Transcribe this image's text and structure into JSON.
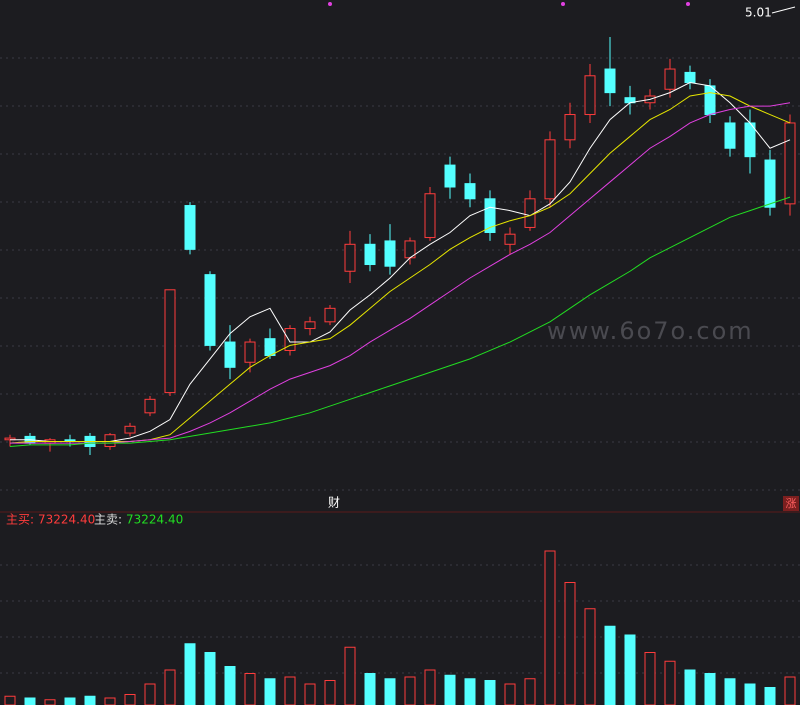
{
  "chart_data": [
    {
      "type": "candlestick",
      "ylim": [
        2.5,
        5.2
      ],
      "high_label": "5.01",
      "watermark": "www.6o7o.com",
      "marker_left": "财",
      "marker_right": "涨",
      "up_color": "#ff3c3c",
      "down_color": "#54ffff",
      "candles": [
        {
          "open": 2.62,
          "high": 2.65,
          "low": 2.58,
          "close": 2.63
        },
        {
          "open": 2.64,
          "high": 2.66,
          "low": 2.59,
          "close": 2.6
        },
        {
          "open": 2.6,
          "high": 2.63,
          "low": 2.55,
          "close": 2.62
        },
        {
          "open": 2.62,
          "high": 2.65,
          "low": 2.58,
          "close": 2.61
        },
        {
          "open": 2.64,
          "high": 2.66,
          "low": 2.53,
          "close": 2.58
        },
        {
          "open": 2.58,
          "high": 2.66,
          "low": 2.56,
          "close": 2.65
        },
        {
          "open": 2.66,
          "high": 2.72,
          "low": 2.64,
          "close": 2.7
        },
        {
          "open": 2.78,
          "high": 2.88,
          "low": 2.76,
          "close": 2.86
        },
        {
          "open": 2.9,
          "high": 3.51,
          "low": 2.88,
          "close": 3.51
        },
        {
          "open": 4.01,
          "high": 4.03,
          "low": 3.72,
          "close": 3.75
        },
        {
          "open": 3.6,
          "high": 3.62,
          "low": 3.15,
          "close": 3.18
        },
        {
          "open": 3.2,
          "high": 3.3,
          "low": 2.98,
          "close": 3.05
        },
        {
          "open": 3.08,
          "high": 3.22,
          "low": 3.02,
          "close": 3.2
        },
        {
          "open": 3.22,
          "high": 3.28,
          "low": 3.1,
          "close": 3.12
        },
        {
          "open": 3.15,
          "high": 3.3,
          "low": 3.12,
          "close": 3.28
        },
        {
          "open": 3.28,
          "high": 3.35,
          "low": 3.24,
          "close": 3.32
        },
        {
          "open": 3.32,
          "high": 3.42,
          "low": 3.3,
          "close": 3.4
        },
        {
          "open": 3.62,
          "high": 3.86,
          "low": 3.55,
          "close": 3.78
        },
        {
          "open": 3.78,
          "high": 3.84,
          "low": 3.62,
          "close": 3.66
        },
        {
          "open": 3.8,
          "high": 3.9,
          "low": 3.6,
          "close": 3.65
        },
        {
          "open": 3.7,
          "high": 3.82,
          "low": 3.66,
          "close": 3.8
        },
        {
          "open": 3.82,
          "high": 4.12,
          "low": 3.8,
          "close": 4.08
        },
        {
          "open": 4.25,
          "high": 4.3,
          "low": 4.05,
          "close": 4.12
        },
        {
          "open": 4.14,
          "high": 4.2,
          "low": 4.0,
          "close": 4.05
        },
        {
          "open": 4.05,
          "high": 4.1,
          "low": 3.8,
          "close": 3.85
        },
        {
          "open": 3.78,
          "high": 3.88,
          "low": 3.72,
          "close": 3.84
        },
        {
          "open": 3.88,
          "high": 4.1,
          "low": 3.86,
          "close": 4.05
        },
        {
          "open": 4.05,
          "high": 4.45,
          "low": 4.0,
          "close": 4.4
        },
        {
          "open": 4.4,
          "high": 4.62,
          "low": 4.35,
          "close": 4.55
        },
        {
          "open": 4.55,
          "high": 4.85,
          "low": 4.5,
          "close": 4.78
        },
        {
          "open": 4.82,
          "high": 5.01,
          "low": 4.6,
          "close": 4.68
        },
        {
          "open": 4.65,
          "high": 4.72,
          "low": 4.55,
          "close": 4.62
        },
        {
          "open": 4.62,
          "high": 4.7,
          "low": 4.58,
          "close": 4.66
        },
        {
          "open": 4.7,
          "high": 4.88,
          "low": 4.65,
          "close": 4.82
        },
        {
          "open": 4.8,
          "high": 4.84,
          "low": 4.7,
          "close": 4.74
        },
        {
          "open": 4.72,
          "high": 4.76,
          "low": 4.5,
          "close": 4.55
        },
        {
          "open": 4.5,
          "high": 4.54,
          "low": 4.3,
          "close": 4.35
        },
        {
          "open": 4.5,
          "high": 4.58,
          "low": 4.2,
          "close": 4.3
        },
        {
          "open": 4.28,
          "high": 4.34,
          "low": 3.95,
          "close": 4.0
        },
        {
          "open": 4.02,
          "high": 4.55,
          "low": 3.95,
          "close": 4.5
        }
      ],
      "lines": [
        {
          "color": "#ffffff",
          "values": [
            2.62,
            2.62,
            2.61,
            2.61,
            2.61,
            2.61,
            2.63,
            2.67,
            2.74,
            2.95,
            3.1,
            3.25,
            3.35,
            3.4,
            3.2,
            3.2,
            3.26,
            3.39,
            3.48,
            3.58,
            3.7,
            3.78,
            3.85,
            3.95,
            4.0,
            3.98,
            3.95,
            4.02,
            4.15,
            4.35,
            4.52,
            4.62,
            4.64,
            4.68,
            4.74,
            4.72,
            4.62,
            4.5,
            4.35,
            4.4
          ]
        },
        {
          "color": "#e6e600",
          "values": [
            2.6,
            2.61,
            2.61,
            2.61,
            2.61,
            2.61,
            2.61,
            2.62,
            2.65,
            2.75,
            2.85,
            2.95,
            3.05,
            3.12,
            3.18,
            3.2,
            3.22,
            3.3,
            3.4,
            3.5,
            3.58,
            3.66,
            3.75,
            3.82,
            3.88,
            3.92,
            3.95,
            4.0,
            4.08,
            4.2,
            4.32,
            4.42,
            4.52,
            4.58,
            4.66,
            4.68,
            4.66,
            4.6,
            4.55,
            4.5
          ]
        },
        {
          "color": "#e040e0",
          "values": [
            2.6,
            2.6,
            2.6,
            2.6,
            2.6,
            2.6,
            2.61,
            2.62,
            2.63,
            2.67,
            2.72,
            2.78,
            2.85,
            2.92,
            2.98,
            3.02,
            3.06,
            3.12,
            3.2,
            3.27,
            3.34,
            3.42,
            3.5,
            3.58,
            3.65,
            3.72,
            3.78,
            3.85,
            3.95,
            4.05,
            4.15,
            4.25,
            4.35,
            4.42,
            4.5,
            4.55,
            4.58,
            4.6,
            4.6,
            4.62
          ]
        },
        {
          "color": "#22dd22",
          "values": [
            2.58,
            2.59,
            2.59,
            2.59,
            2.6,
            2.6,
            2.6,
            2.61,
            2.62,
            2.64,
            2.66,
            2.68,
            2.7,
            2.72,
            2.75,
            2.78,
            2.82,
            2.86,
            2.9,
            2.94,
            2.98,
            3.02,
            3.06,
            3.1,
            3.15,
            3.2,
            3.26,
            3.32,
            3.4,
            3.48,
            3.55,
            3.62,
            3.7,
            3.76,
            3.82,
            3.88,
            3.94,
            3.98,
            4.02,
            4.06
          ]
        }
      ]
    },
    {
      "type": "bar",
      "ylim": [
        0,
        100
      ],
      "buy_label": "主买:",
      "buy_value": "73224.40",
      "sell_label": "主卖:",
      "sell_value": "73224.40",
      "values": [
        5,
        4,
        3,
        4,
        5,
        4,
        6,
        12,
        20,
        35,
        30,
        22,
        18,
        15,
        16,
        12,
        14,
        33,
        18,
        15,
        16,
        20,
        17,
        15,
        14,
        12,
        15,
        88,
        70,
        55,
        45,
        40,
        30,
        25,
        20,
        18,
        15,
        12,
        10,
        16
      ]
    }
  ]
}
